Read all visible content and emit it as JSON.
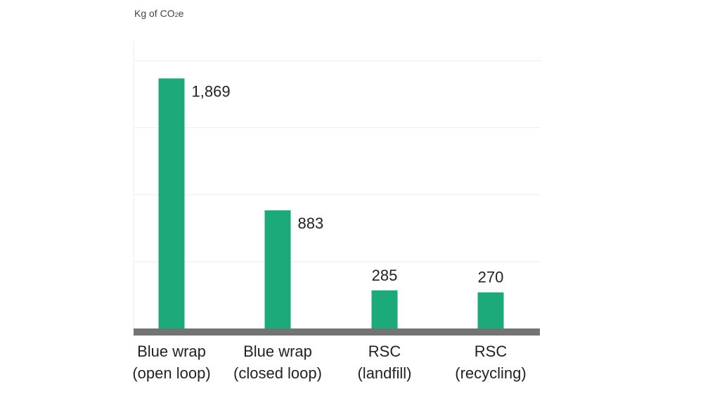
{
  "chart_data": {
    "type": "bar",
    "ylabel_main": "Kg of CO",
    "ylabel_sub": "2",
    "ylabel_suffix": "e",
    "categories": [
      {
        "line1": "Blue wrap",
        "line2": "(open loop)"
      },
      {
        "line1": "Blue wrap",
        "line2": "(closed loop)"
      },
      {
        "line1": "RSC",
        "line2": "(landfill)"
      },
      {
        "line1": "RSC",
        "line2": "(recycling)"
      }
    ],
    "values": [
      1869,
      883,
      285,
      270
    ],
    "value_labels": [
      "1,869",
      "883",
      "285",
      "270"
    ],
    "ylim": [
      0,
      2150
    ],
    "grid": true,
    "grid_step": 500,
    "bar_color": "#1daa7b",
    "baseline_color": "#737373"
  }
}
